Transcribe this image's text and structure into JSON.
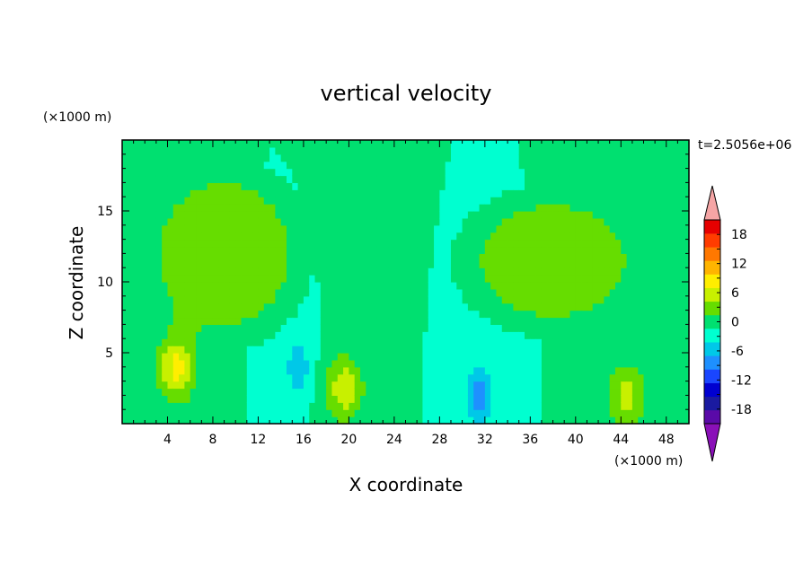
{
  "chart_data": {
    "type": "heatmap",
    "title": "vertical velocity",
    "xlabel": "X coordinate",
    "ylabel": "Z coordinate",
    "x_unit": "(×1000 m)",
    "y_unit": "(×1000 m)",
    "time_label": "t=2.5056e+06",
    "xlim": [
      0,
      50
    ],
    "ylim": [
      0,
      20
    ],
    "x_ticks": [
      4,
      8,
      12,
      16,
      20,
      24,
      28,
      32,
      36,
      40,
      44,
      48
    ],
    "y_ticks": [
      5,
      10,
      15
    ],
    "colorbar": {
      "levels": [
        -21,
        -18,
        -15,
        -12,
        -9,
        -6,
        -3,
        0,
        3,
        6,
        9,
        12,
        15,
        18,
        21
      ],
      "tick_labels": [
        "18",
        "12",
        "6",
        "0",
        "-6",
        "-12",
        "-18"
      ],
      "tick_values": [
        18,
        12,
        6,
        0,
        -6,
        -12,
        -18
      ],
      "colors": [
        "#5a0aa8",
        "#1a1aa0",
        "#0000d0",
        "#1a46ff",
        "#1e90ff",
        "#00c8e8",
        "#00ffd0",
        "#00e070",
        "#66dd00",
        "#c8f000",
        "#ffee00",
        "#ffb400",
        "#ff7800",
        "#ff3c00",
        "#e60000"
      ],
      "background_color": "#2ee69a",
      "extend_low_color": "#8a10b8",
      "extend_high_color": "#f5a5a5"
    },
    "features": [
      {
        "type": "updraft",
        "x_center": 4.8,
        "z_center": 4.0,
        "peak": 10,
        "description_color": "orange"
      },
      {
        "type": "updraft",
        "x_center": 19.6,
        "z_center": 2.5,
        "peak": 8
      },
      {
        "type": "updraft",
        "x_center": 44.5,
        "z_center": 2.0,
        "peak": 7
      },
      {
        "type": "downdraft",
        "x_center": 15.5,
        "z_center": 4.0,
        "peak": -5
      },
      {
        "type": "downdraft",
        "x_center": 31.5,
        "z_center": 2.0,
        "peak": -9
      },
      {
        "type": "weak_upward_region",
        "x_range": [
          1,
          17
        ],
        "z_range": [
          5,
          19
        ],
        "value": 1
      },
      {
        "type": "weak_upward_region",
        "x_range": [
          29,
          47
        ],
        "z_range": [
          6,
          17
        ],
        "value": 1
      }
    ]
  }
}
